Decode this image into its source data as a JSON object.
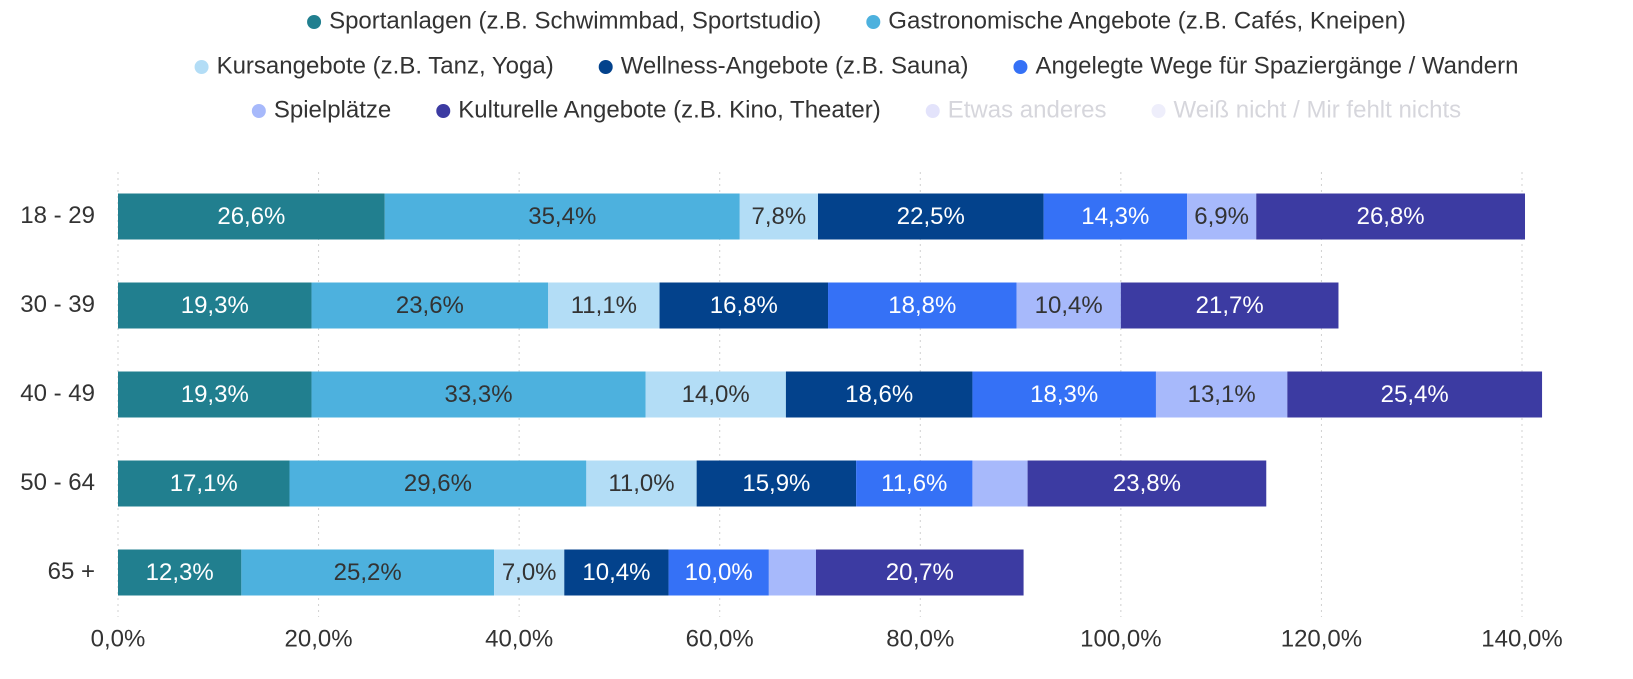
{
  "chart_data": {
    "type": "stacked-bar-horizontal",
    "categories": [
      "18 - 29",
      "30 - 39",
      "40 - 49",
      "50 - 64",
      "65 +"
    ],
    "series": [
      {
        "name": "Sportanlagen (z.B. Schwimmbad, Sportstudio)",
        "color": "#217f8f",
        "label_color": "#ffffff",
        "values": [
          26.6,
          19.3,
          19.3,
          17.1,
          12.3
        ],
        "value_labels": [
          "26,6%",
          "19,3%",
          "19,3%",
          "17,1%",
          "12,3%"
        ]
      },
      {
        "name": "Gastronomische Angebote (z.B. Cafés, Kneipen)",
        "color": "#4db1de",
        "label_color": "#333333",
        "values": [
          35.4,
          23.6,
          33.3,
          29.6,
          25.2
        ],
        "value_labels": [
          "35,4%",
          "23,6%",
          "33,3%",
          "29,6%",
          "25,2%"
        ]
      },
      {
        "name": "Kursangebote (z.B. Tanz, Yoga)",
        "color": "#b3ddf6",
        "label_color": "#333333",
        "values": [
          7.8,
          11.1,
          14.0,
          11.0,
          7.0
        ],
        "value_labels": [
          "7,8%",
          "11,1%",
          "14,0%",
          "11,0%",
          "7,0%"
        ]
      },
      {
        "name": "Wellness-Angebote (z.B. Sauna)",
        "color": "#03428c",
        "label_color": "#ffffff",
        "values": [
          22.5,
          16.8,
          18.6,
          15.9,
          10.4
        ],
        "value_labels": [
          "22,5%",
          "16,8%",
          "18,6%",
          "15,9%",
          "10,4%"
        ]
      },
      {
        "name": "Angelegte Wege für Spaziergänge / Wandern",
        "color": "#3571f6",
        "label_color": "#ffffff",
        "values": [
          14.3,
          18.8,
          18.3,
          11.6,
          10.0
        ],
        "value_labels": [
          "14,3%",
          "18,8%",
          "18,3%",
          "11,6%",
          "10,0%"
        ]
      },
      {
        "name": "Spielplätze",
        "color": "#a7b9fb",
        "label_color": "#333333",
        "values": [
          6.9,
          10.4,
          13.1,
          5.5,
          4.7
        ],
        "value_labels": [
          "6,9%",
          "10,4%",
          "13,1%",
          null,
          null
        ]
      },
      {
        "name": "Kulturelle Angebote (z.B. Kino, Theater)",
        "color": "#3c3ba2",
        "label_color": "#ffffff",
        "values": [
          26.8,
          21.7,
          25.4,
          23.8,
          20.7
        ],
        "value_labels": [
          "26,8%",
          "21,7%",
          "25,4%",
          "23,8%",
          "20,7%"
        ]
      },
      {
        "name": "Etwas anderes",
        "color": "#e3e3fb",
        "hidden": true,
        "values": [
          null,
          null,
          null,
          null,
          null
        ]
      },
      {
        "name": "Weiß nicht / Mir fehlt nichts",
        "color": "#eeeefb",
        "hidden": true,
        "values": [
          null,
          null,
          null,
          null,
          null
        ]
      }
    ],
    "xlim": [
      0,
      140
    ],
    "xticks": [
      {
        "value": 0,
        "label": "0,0%"
      },
      {
        "value": 20,
        "label": "20,0%"
      },
      {
        "value": 40,
        "label": "40,0%"
      },
      {
        "value": 60,
        "label": "60,0%"
      },
      {
        "value": 80,
        "label": "80,0%"
      },
      {
        "value": 100,
        "label": "100,0%"
      },
      {
        "value": 120,
        "label": "120,0%"
      },
      {
        "value": 140,
        "label": "140,0%"
      }
    ],
    "grid": true,
    "legend": "top"
  }
}
